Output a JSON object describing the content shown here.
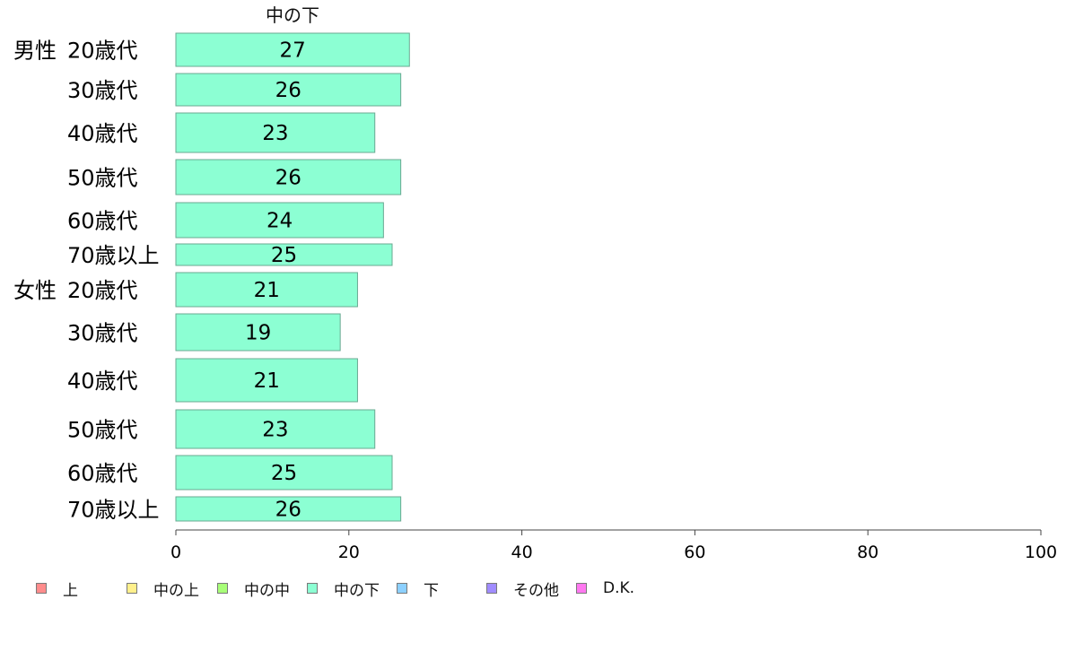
{
  "chart_data": {
    "type": "bar",
    "orientation": "horizontal",
    "title": "中の下",
    "groups": [
      {
        "label": "男性",
        "categories": [
          "20歳代",
          "30歳代",
          "40歳代",
          "50歳代",
          "60歳代",
          "70歳以上"
        ],
        "values": [
          27,
          26,
          23,
          26,
          24,
          25
        ]
      },
      {
        "label": "女性",
        "categories": [
          "20歳代",
          "30歳代",
          "40歳代",
          "50歳代",
          "60歳代",
          "70歳以上"
        ],
        "values": [
          21,
          19,
          21,
          23,
          25,
          26
        ]
      }
    ],
    "xlim": [
      0,
      100
    ],
    "xticks": [
      0,
      20,
      40,
      60,
      80,
      100
    ],
    "xlabel": "",
    "ylabel": "",
    "grid": false,
    "bar_color": "#8cffd3",
    "legend_placement": "bottom",
    "legend": [
      {
        "label": "上",
        "color": "#ff8c8c"
      },
      {
        "label": "中の上",
        "color": "#fff08c"
      },
      {
        "label": "中の中",
        "color": "#a8ff78"
      },
      {
        "label": "中の下",
        "color": "#8cffd3"
      },
      {
        "label": "下",
        "color": "#8cd0ff"
      },
      {
        "label": "その他",
        "color": "#a08cff"
      },
      {
        "label": "D.K.",
        "color": "#ff78f0"
      }
    ]
  }
}
